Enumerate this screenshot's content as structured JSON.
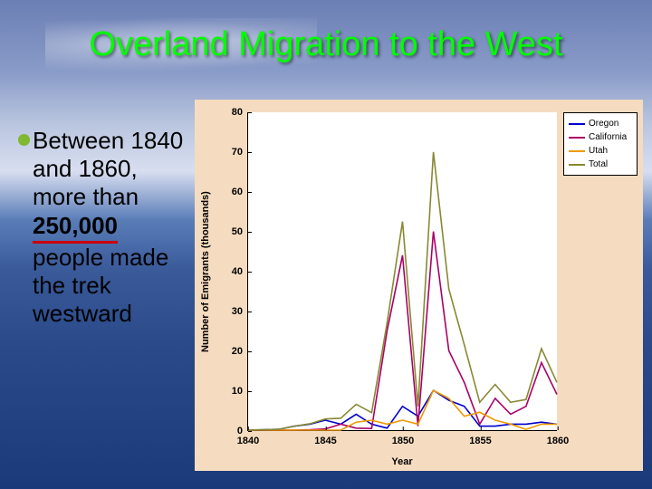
{
  "title": "Overland Migration to the West",
  "bullet": {
    "pre": "Between 1840 and 1860, more than ",
    "emph": "250,000",
    "post": " people made the trek westward"
  },
  "chart": {
    "type": "line",
    "xlabel": "Year",
    "ylabel": "Number of Emigrants (thousands)",
    "background_color": "#f5dcc0",
    "plot_bg": "#ffffff",
    "xlim": [
      1840,
      1860
    ],
    "ylim": [
      0,
      80
    ],
    "xtick_step": 5,
    "ytick_step": 10,
    "xticks": [
      1840,
      1845,
      1850,
      1855,
      1860
    ],
    "yticks": [
      0,
      10,
      20,
      30,
      40,
      50,
      60,
      70,
      80
    ],
    "label_fontsize": 11,
    "tick_fontsize": 11,
    "line_width": 1.6,
    "legend_position": "upper-right-outside",
    "series": [
      {
        "name": "Oregon",
        "color": "#0000cc",
        "x": [
          1840,
          1841,
          1842,
          1843,
          1844,
          1845,
          1846,
          1847,
          1848,
          1849,
          1850,
          1851,
          1852,
          1853,
          1854,
          1855,
          1856,
          1857,
          1858,
          1859,
          1860
        ],
        "y": [
          0,
          0.1,
          0.2,
          1,
          1.5,
          2.5,
          1.5,
          4,
          1.5,
          0.5,
          6,
          3.5,
          10,
          7.5,
          6,
          1,
          1,
          1.5,
          1.5,
          2,
          1.5
        ]
      },
      {
        "name": "California",
        "color": "#aa0066",
        "x": [
          1840,
          1841,
          1842,
          1843,
          1844,
          1845,
          1846,
          1847,
          1848,
          1849,
          1850,
          1851,
          1852,
          1853,
          1854,
          1855,
          1856,
          1857,
          1858,
          1859,
          1860
        ],
        "y": [
          0,
          0,
          0,
          0,
          0.1,
          0.3,
          1.5,
          0.5,
          0.4,
          25,
          44,
          1,
          50,
          20,
          12,
          1.5,
          8,
          4,
          6,
          17,
          9
        ]
      },
      {
        "name": "Utah",
        "color": "#ee9900",
        "x": [
          1840,
          1841,
          1842,
          1843,
          1844,
          1845,
          1846,
          1847,
          1848,
          1849,
          1850,
          1851,
          1852,
          1853,
          1854,
          1855,
          1856,
          1857,
          1858,
          1859,
          1860
        ],
        "y": [
          0,
          0,
          0,
          0,
          0,
          0,
          0,
          2,
          2.5,
          1.5,
          2.5,
          1.5,
          10,
          8,
          3.5,
          4.5,
          2.5,
          1.5,
          0.2,
          1.5,
          1.5
        ]
      },
      {
        "name": "Total",
        "color": "#888833",
        "x": [
          1840,
          1841,
          1842,
          1843,
          1844,
          1845,
          1846,
          1847,
          1848,
          1849,
          1850,
          1851,
          1852,
          1853,
          1854,
          1855,
          1856,
          1857,
          1858,
          1859,
          1860
        ],
        "y": [
          0,
          0.1,
          0.2,
          1,
          1.6,
          2.8,
          3,
          6.5,
          4.4,
          27,
          52.5,
          6,
          70,
          35.5,
          21.5,
          7,
          11.5,
          7,
          7.7,
          20.5,
          12
        ]
      }
    ]
  }
}
